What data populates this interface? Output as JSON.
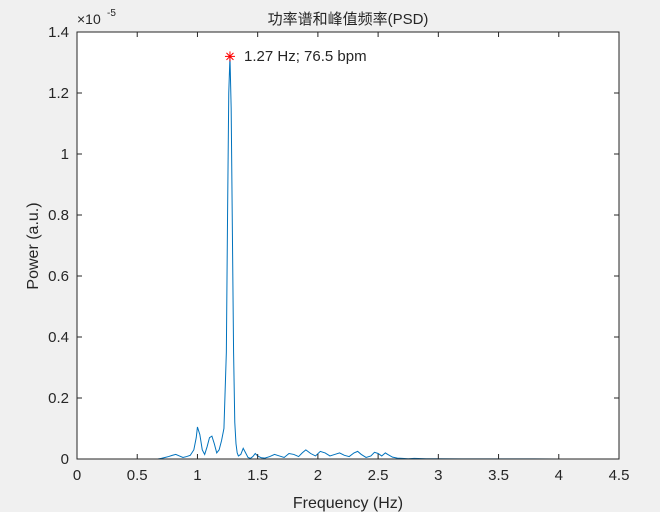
{
  "chart_data": {
    "type": "line",
    "title": "功率谱和峰值频率(PSD)",
    "xlabel": "Frequency (Hz)",
    "ylabel": "Power (a.u.)",
    "xlim": [
      0,
      4.5
    ],
    "ylim": [
      0,
      1.4
    ],
    "y_exponent_base": "×10",
    "y_exponent_power": "-5",
    "xticks": [
      0,
      0.5,
      1,
      1.5,
      2,
      2.5,
      3,
      3.5,
      4,
      4.5
    ],
    "xtick_labels": [
      "0",
      "0.5",
      "1",
      "1.5",
      "2",
      "2.5",
      "3",
      "3.5",
      "4",
      "4.5"
    ],
    "yticks": [
      0,
      0.2,
      0.4,
      0.6,
      0.8,
      1.0,
      1.2,
      1.4
    ],
    "ytick_labels": [
      "0",
      "0.2",
      "0.4",
      "0.6",
      "0.8",
      "1",
      "1.2",
      "1.4"
    ],
    "grid": false,
    "series": [
      {
        "color": "#0072BD",
        "x": [
          0.67,
          0.7,
          0.73,
          0.76,
          0.79,
          0.82,
          0.85,
          0.88,
          0.91,
          0.94,
          0.97,
          0.99,
          1.0,
          1.02,
          1.04,
          1.06,
          1.08,
          1.1,
          1.12,
          1.14,
          1.16,
          1.18,
          1.2,
          1.22,
          1.24,
          1.25,
          1.26,
          1.27,
          1.28,
          1.29,
          1.3,
          1.31,
          1.32,
          1.33,
          1.34,
          1.36,
          1.38,
          1.4,
          1.42,
          1.44,
          1.46,
          1.48,
          1.5,
          1.53,
          1.56,
          1.6,
          1.64,
          1.68,
          1.72,
          1.76,
          1.8,
          1.84,
          1.87,
          1.9,
          1.94,
          1.98,
          2.02,
          2.06,
          2.1,
          2.14,
          2.18,
          2.22,
          2.26,
          2.3,
          2.33,
          2.36,
          2.4,
          2.44,
          2.47,
          2.5,
          2.53,
          2.56,
          2.58,
          2.62,
          2.66,
          2.7,
          2.75,
          2.8,
          2.9,
          3.0,
          3.2,
          3.4,
          3.6,
          3.8,
          4.0,
          4.2
        ],
        "y": [
          0.0,
          0.002,
          0.005,
          0.008,
          0.012,
          0.015,
          0.01,
          0.005,
          0.008,
          0.012,
          0.03,
          0.07,
          0.105,
          0.08,
          0.03,
          0.015,
          0.04,
          0.07,
          0.075,
          0.05,
          0.02,
          0.03,
          0.06,
          0.1,
          0.35,
          0.8,
          1.2,
          1.32,
          1.15,
          0.75,
          0.35,
          0.12,
          0.05,
          0.02,
          0.01,
          0.015,
          0.035,
          0.02,
          0.005,
          0.002,
          0.008,
          0.018,
          0.01,
          0.004,
          0.003,
          0.008,
          0.015,
          0.01,
          0.005,
          0.018,
          0.015,
          0.008,
          0.02,
          0.03,
          0.018,
          0.01,
          0.025,
          0.02,
          0.01,
          0.015,
          0.02,
          0.012,
          0.008,
          0.02,
          0.025,
          0.015,
          0.005,
          0.01,
          0.022,
          0.018,
          0.01,
          0.02,
          0.015,
          0.006,
          0.003,
          0.002,
          0.001,
          0.002,
          0.001,
          0.001,
          0.0005,
          0.0005,
          0.0003,
          0.0003,
          0.0002,
          0.0002
        ]
      }
    ],
    "peak_marker": {
      "x": 1.27,
      "y": 1.32,
      "color": "#FF0000",
      "label": "1.27 Hz; 76.5 bpm"
    }
  }
}
